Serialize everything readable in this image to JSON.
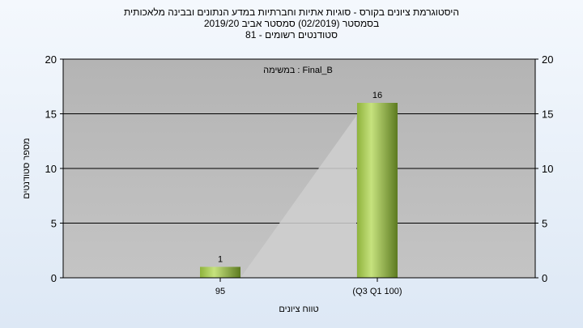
{
  "chart_data": {
    "type": "bar",
    "title_lines": [
      "היסטוגרמת ציונים בקורס - סוגיות אתיות וחברתיות במדע הנתונים ובבינה מלאכותית",
      "בסמסטר  (02/2019)  סמסטר אביב 2019/20",
      "סטודנטים רשומים - 81"
    ],
    "annotation": "במשימה : Final_B",
    "categories": [
      "95",
      "(Q3 Q1 100)"
    ],
    "values": [
      1,
      16
    ],
    "data_labels": [
      "1",
      "16"
    ],
    "xlabel": "טווח ציונים",
    "ylabel": "מספר סטודנטים",
    "ylim": [
      0,
      20
    ],
    "yticks": [
      0,
      5,
      10,
      15,
      20
    ],
    "grid": true,
    "colors": {
      "plot_bg": "#c0c0c0",
      "bar_light": "#c6e27e",
      "bar_dark": "#5c7a20",
      "grid": "#000000"
    }
  }
}
